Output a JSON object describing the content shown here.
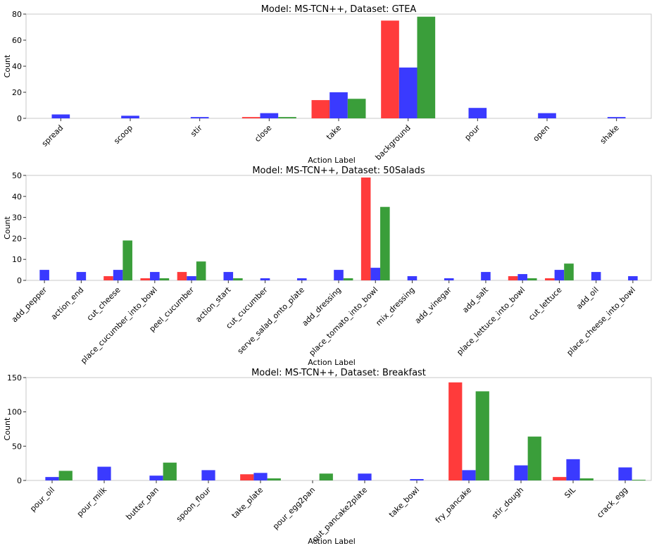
{
  "colors": {
    "series_1": "#ff3b3b",
    "series_2": "#3a3aff",
    "series_3": "#3a9e3a"
  },
  "chart_data": [
    {
      "type": "bar",
      "title": "Model: MS-TCN++, Dataset: GTEA",
      "xlabel": "Action Label",
      "ylabel": "Count",
      "ylim": [
        0,
        80
      ],
      "yticks": [
        0,
        20,
        40,
        60,
        80
      ],
      "categories": [
        "spread",
        "scoop",
        "stir",
        "close",
        "take",
        "background",
        "pour",
        "open",
        "shake"
      ],
      "series": [
        {
          "name": "red",
          "color": "#ff3b3b",
          "values": [
            0,
            0,
            0,
            1,
            14,
            75,
            0,
            0,
            0
          ]
        },
        {
          "name": "blue",
          "color": "#3a3aff",
          "values": [
            3,
            2,
            1,
            4,
            20,
            39,
            8,
            4,
            1
          ]
        },
        {
          "name": "green",
          "color": "#3a9e3a",
          "values": [
            0,
            0,
            0,
            1,
            15,
            78,
            0,
            0,
            0
          ]
        }
      ]
    },
    {
      "type": "bar",
      "title": "Model: MS-TCN++, Dataset: 50Salads",
      "xlabel": "Action Label",
      "ylabel": "Count",
      "ylim": [
        0,
        50
      ],
      "yticks": [
        0,
        10,
        20,
        30,
        40,
        50
      ],
      "categories": [
        "add_pepper",
        "action_end",
        "cut_cheese",
        "place_cucumber_into_bowl",
        "peel_cucumber",
        "action_start",
        "cut_cucumber",
        "serve_salad_onto_plate",
        "add_dressing",
        "place_tomato_into_bowl",
        "mix_dressing",
        "add_vinegar",
        "add_salt",
        "place_lettuce_into_bowl",
        "cut_lettuce",
        "add_oil",
        "place_cheese_into_bowl"
      ],
      "series": [
        {
          "name": "red",
          "color": "#ff3b3b",
          "values": [
            0,
            0,
            2,
            1,
            4,
            0,
            0,
            0,
            0,
            49,
            0,
            0,
            0,
            2,
            1,
            0,
            0
          ]
        },
        {
          "name": "blue",
          "color": "#3a3aff",
          "values": [
            5,
            4,
            5,
            4,
            2,
            4,
            1,
            1,
            5,
            6,
            2,
            1,
            4,
            3,
            5,
            4,
            2
          ]
        },
        {
          "name": "green",
          "color": "#3a9e3a",
          "values": [
            0,
            0,
            19,
            1,
            9,
            1,
            0,
            0,
            1,
            35,
            0,
            0,
            0,
            1,
            8,
            0,
            0
          ]
        }
      ]
    },
    {
      "type": "bar",
      "title": "Model: MS-TCN++, Dataset: Breakfast",
      "xlabel": "Action Label",
      "ylabel": "Count",
      "ylim": [
        0,
        150
      ],
      "yticks": [
        0,
        50,
        100,
        150
      ],
      "categories": [
        "pour_oil",
        "pour_milk",
        "butter_pan",
        "spoon_flour",
        "take_plate",
        "pour_egg2pan",
        "put_pancake2plate",
        "take_bowl",
        "fry_pancake",
        "stir_dough",
        "SIL",
        "crack_egg"
      ],
      "series": [
        {
          "name": "red",
          "color": "#ff3b3b",
          "values": [
            0,
            0,
            0,
            0,
            9,
            0,
            0,
            0,
            143,
            0,
            5,
            0
          ]
        },
        {
          "name": "blue",
          "color": "#3a3aff",
          "values": [
            5,
            20,
            7,
            15,
            11,
            0,
            10,
            2,
            15,
            22,
            31,
            19
          ]
        },
        {
          "name": "green",
          "color": "#3a9e3a",
          "values": [
            14,
            0,
            26,
            0,
            3,
            10,
            0,
            0,
            130,
            64,
            3,
            1
          ]
        }
      ]
    }
  ]
}
